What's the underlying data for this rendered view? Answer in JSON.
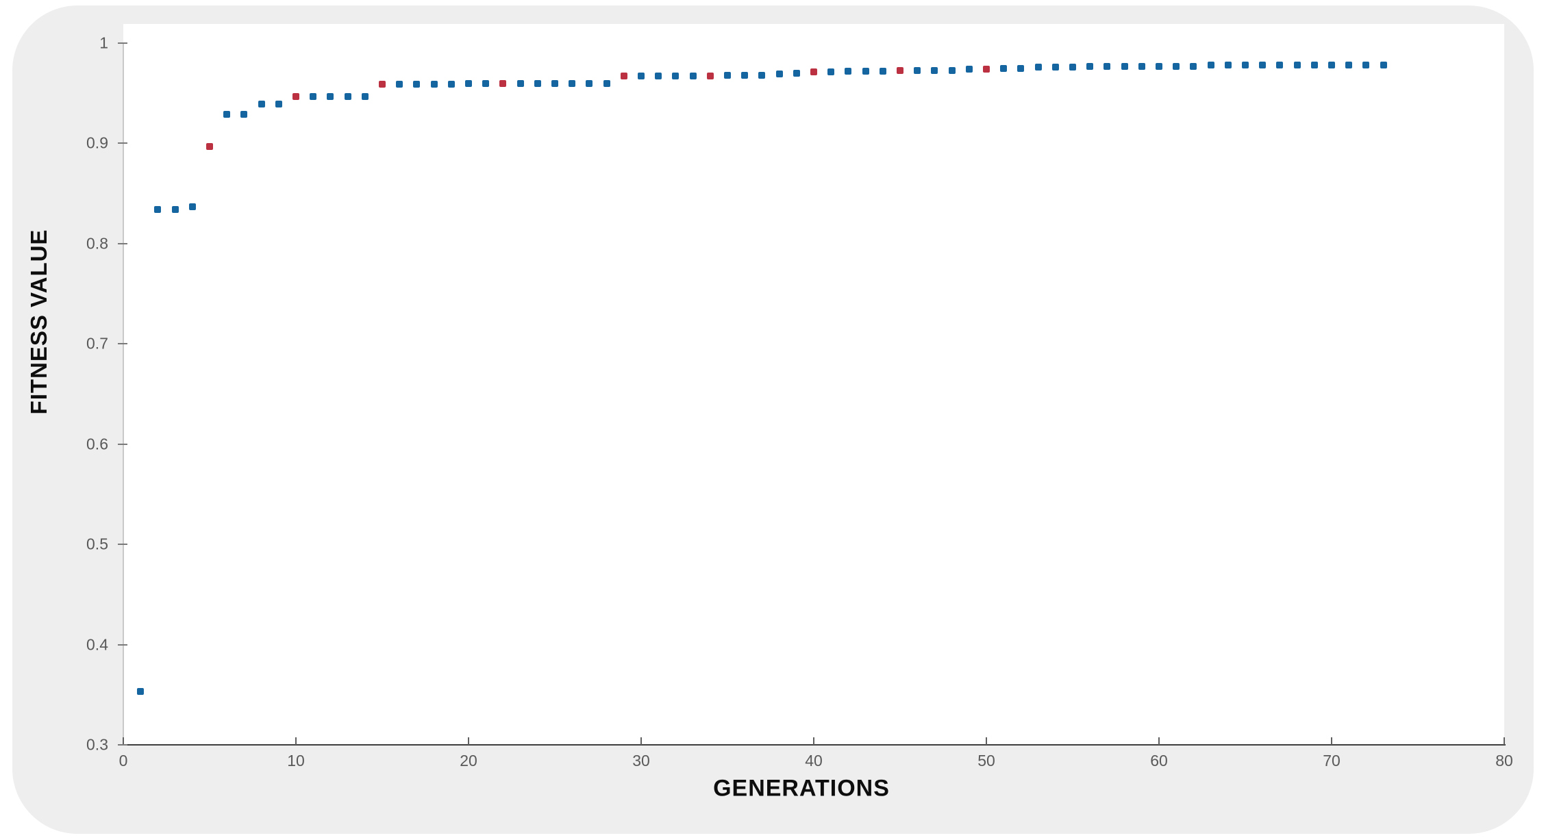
{
  "colors": {
    "card_background": "#eeeeee",
    "plot_background": "#ffffff",
    "x_axis_line": "#3f3f3f",
    "y_axis_line": "#c9c9c9",
    "tick_label": "#595959",
    "axis_label": "#0d0d0d",
    "blue_marker": "#1565a0",
    "red_marker": "#bb3142"
  },
  "chart_data": {
    "type": "scatter",
    "title": "",
    "xlabel": "GENERATIONS",
    "ylabel": "FITNESS VALUE",
    "xlim": [
      0,
      80
    ],
    "ylim": [
      0.3,
      1.0
    ],
    "grid": false,
    "legend_position": "none",
    "x_ticks": [
      {
        "value": 0,
        "label": "0"
      },
      {
        "value": 10,
        "label": "10"
      },
      {
        "value": 20,
        "label": "20"
      },
      {
        "value": 30,
        "label": "30"
      },
      {
        "value": 40,
        "label": "40"
      },
      {
        "value": 50,
        "label": "50"
      },
      {
        "value": 60,
        "label": "60"
      },
      {
        "value": 70,
        "label": "70"
      },
      {
        "value": 80,
        "label": "80"
      }
    ],
    "y_ticks": [
      {
        "value": 0.3,
        "label": "0.3"
      },
      {
        "value": 0.4,
        "label": "0.4"
      },
      {
        "value": 0.5,
        "label": "0.5"
      },
      {
        "value": 0.6,
        "label": "0.6"
      },
      {
        "value": 0.7,
        "label": "0.7"
      },
      {
        "value": 0.8,
        "label": "0.8"
      },
      {
        "value": 0.9,
        "label": "0.9"
      },
      {
        "value": 1.0,
        "label": "1"
      }
    ],
    "series": [
      {
        "name": "fitness-blue-points",
        "marker": "square",
        "color": "#1565a0",
        "x": [
          1,
          2,
          3,
          4,
          6,
          7,
          8,
          9,
          11,
          12,
          13,
          14,
          16,
          17,
          18,
          19,
          20,
          21,
          23,
          24,
          25,
          26,
          27,
          28,
          30,
          31,
          32,
          33,
          35,
          36,
          37,
          38,
          39,
          41,
          42,
          43,
          44,
          46,
          47,
          48,
          49,
          51,
          52,
          53,
          54,
          55,
          56,
          57,
          58,
          59,
          60,
          61,
          62,
          63,
          64,
          65,
          66,
          67,
          68,
          69,
          70,
          71,
          72,
          73
        ],
        "y": [
          0.353,
          0.834,
          0.834,
          0.837,
          0.929,
          0.929,
          0.939,
          0.939,
          0.947,
          0.947,
          0.947,
          0.947,
          0.959,
          0.959,
          0.959,
          0.959,
          0.96,
          0.96,
          0.96,
          0.96,
          0.96,
          0.96,
          0.96,
          0.96,
          0.967,
          0.967,
          0.967,
          0.967,
          0.968,
          0.968,
          0.968,
          0.969,
          0.97,
          0.971,
          0.972,
          0.972,
          0.972,
          0.973,
          0.973,
          0.973,
          0.974,
          0.975,
          0.975,
          0.976,
          0.976,
          0.976,
          0.977,
          0.977,
          0.977,
          0.977,
          0.977,
          0.977,
          0.977,
          0.978,
          0.978,
          0.978,
          0.978,
          0.978,
          0.978,
          0.978,
          0.978,
          0.978,
          0.978,
          0.978
        ]
      },
      {
        "name": "fitness-red-points",
        "marker": "square",
        "color": "#bb3142",
        "x": [
          5,
          10,
          15,
          22,
          29,
          34,
          40,
          45,
          50
        ],
        "y": [
          0.897,
          0.947,
          0.959,
          0.96,
          0.967,
          0.967,
          0.971,
          0.973,
          0.974
        ]
      }
    ]
  }
}
